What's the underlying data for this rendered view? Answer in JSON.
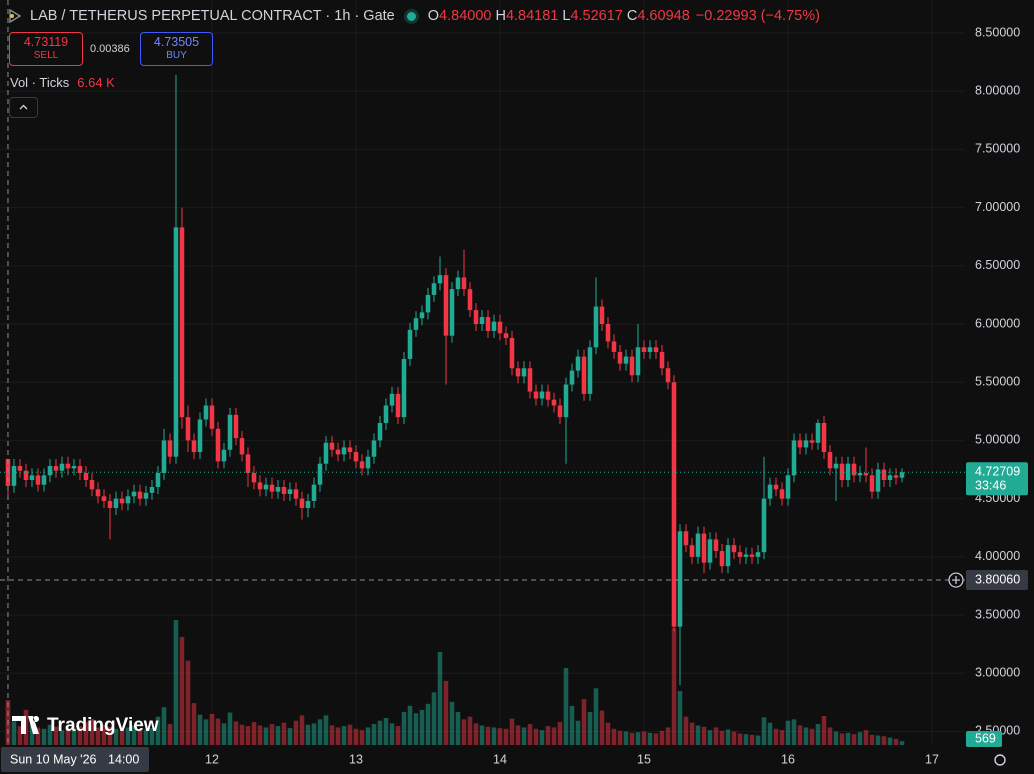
{
  "header": {
    "title": "LAB / TETHERUS PERPETUAL CONTRACT · 1h · Gate",
    "ohlc": [
      {
        "key": "O",
        "value": "4.84000"
      },
      {
        "key": "H",
        "value": "4.84181"
      },
      {
        "key": "L",
        "value": "4.52617"
      },
      {
        "key": "C",
        "value": "4.60948"
      }
    ],
    "change": "−0.22993 (−4.75%)"
  },
  "trade": {
    "sell_price": "4.73119",
    "sell": "SELL",
    "spread": "0.00386",
    "buy_price": "4.73505",
    "buy": "BUY"
  },
  "volume_legend": {
    "label": "Vol · Ticks",
    "value": "6.64 K"
  },
  "watermark": "TradingView",
  "chart_data": {
    "type": "candlestick",
    "up_color": "#22ab94",
    "down_color": "#f23645",
    "grid": true,
    "open": [
      4.84,
      4.61,
      4.78,
      4.74,
      4.66,
      4.7,
      4.62,
      4.7,
      4.78,
      4.74,
      4.8,
      4.76,
      4.78,
      4.72,
      4.66,
      4.58,
      4.52,
      4.48,
      4.42,
      4.5,
      4.46,
      4.52,
      4.56,
      4.5,
      4.55,
      4.6,
      4.72,
      5.0,
      4.86,
      6.83,
      5.2,
      5.0,
      4.9,
      5.18,
      5.3,
      5.1,
      4.82,
      4.92,
      5.22,
      5.02,
      4.88,
      4.72,
      4.64,
      4.58,
      4.62,
      4.56,
      4.6,
      4.54,
      4.58,
      4.5,
      4.42,
      4.48,
      4.62,
      4.8,
      4.98,
      4.92,
      4.88,
      4.94,
      4.9,
      4.82,
      4.76,
      4.86,
      5.0,
      5.15,
      5.3,
      5.4,
      5.2,
      5.7,
      5.95,
      6.05,
      6.1,
      6.25,
      6.35,
      6.42,
      5.9,
      6.3,
      6.4,
      6.3,
      6.12,
      6.0,
      6.06,
      5.94,
      6.02,
      5.92,
      5.88,
      5.62,
      5.55,
      5.62,
      5.42,
      5.36,
      5.42,
      5.35,
      5.3,
      5.2,
      5.48,
      5.6,
      5.72,
      5.4,
      5.8,
      6.15,
      6.0,
      5.85,
      5.76,
      5.66,
      5.72,
      5.56,
      5.8,
      5.76,
      5.8,
      5.76,
      5.62,
      5.5,
      3.4,
      4.22,
      4.1,
      4.0,
      4.2,
      3.95,
      4.15,
      4.05,
      3.92,
      4.1,
      4.04,
      4.0,
      4.02,
      4.0,
      4.04,
      4.5,
      4.62,
      4.58,
      4.5,
      4.7,
      5.0,
      4.94,
      5.0,
      4.98,
      5.15,
      4.9,
      4.76,
      4.8,
      4.66,
      4.8,
      4.7,
      4.72,
      4.7,
      4.56,
      4.75,
      4.66,
      4.7,
      4.68
    ],
    "high": [
      4.84181,
      4.84,
      4.84,
      4.8,
      4.76,
      4.76,
      4.76,
      4.84,
      4.84,
      4.86,
      4.86,
      4.84,
      4.84,
      4.78,
      4.72,
      4.64,
      4.58,
      4.54,
      4.56,
      4.56,
      4.58,
      4.62,
      4.62,
      4.61,
      4.66,
      4.78,
      5.1,
      5.06,
      8.14,
      7.0,
      5.3,
      5.06,
      5.24,
      5.36,
      5.36,
      5.16,
      4.98,
      5.28,
      5.28,
      5.08,
      4.94,
      4.78,
      4.7,
      4.68,
      4.68,
      4.66,
      4.66,
      4.64,
      4.64,
      4.56,
      4.54,
      4.68,
      4.86,
      5.04,
      5.04,
      4.98,
      5.0,
      5.0,
      4.96,
      4.88,
      4.92,
      5.06,
      5.21,
      5.36,
      5.46,
      5.46,
      5.76,
      6.01,
      6.11,
      6.16,
      6.31,
      6.41,
      6.58,
      6.48,
      6.36,
      6.46,
      6.64,
      6.36,
      6.18,
      6.12,
      6.12,
      6.08,
      6.08,
      5.98,
      5.94,
      5.68,
      5.68,
      5.68,
      5.48,
      5.48,
      5.48,
      5.41,
      5.36,
      5.54,
      5.66,
      5.78,
      5.78,
      5.86,
      6.4,
      6.21,
      6.06,
      5.91,
      5.82,
      5.78,
      5.78,
      6.0,
      5.86,
      5.86,
      5.86,
      5.82,
      5.68,
      5.56,
      4.28,
      4.28,
      4.16,
      4.26,
      4.26,
      4.21,
      4.21,
      4.11,
      4.16,
      4.16,
      4.1,
      4.08,
      4.08,
      4.1,
      4.86,
      4.68,
      4.68,
      4.64,
      4.76,
      5.06,
      5.06,
      5.06,
      5.06,
      5.18,
      5.21,
      4.96,
      4.86,
      4.86,
      4.86,
      4.86,
      4.78,
      4.94,
      4.76,
      4.81,
      4.81,
      4.76,
      4.76,
      4.76
    ],
    "low": [
      4.52617,
      4.55,
      4.68,
      4.6,
      4.6,
      4.56,
      4.56,
      4.64,
      4.68,
      4.68,
      4.7,
      4.7,
      4.66,
      4.6,
      4.52,
      4.46,
      4.42,
      4.15,
      4.36,
      4.4,
      4.4,
      4.46,
      4.44,
      4.44,
      4.49,
      4.54,
      4.66,
      4.8,
      4.8,
      5.1,
      4.9,
      4.84,
      4.84,
      5.12,
      5.04,
      4.76,
      4.76,
      4.86,
      4.96,
      4.82,
      4.6,
      4.58,
      4.52,
      4.52,
      4.5,
      4.5,
      4.48,
      4.48,
      4.44,
      4.32,
      4.34,
      4.42,
      4.56,
      4.74,
      4.86,
      4.82,
      4.82,
      4.84,
      4.76,
      4.7,
      4.7,
      4.8,
      4.94,
      5.09,
      5.24,
      5.14,
      5.14,
      5.64,
      5.89,
      5.99,
      6.04,
      6.19,
      6.29,
      5.48,
      5.84,
      6.24,
      6.24,
      6.06,
      5.94,
      5.94,
      5.88,
      5.88,
      5.86,
      5.82,
      5.56,
      5.49,
      5.49,
      5.36,
      5.3,
      5.3,
      5.29,
      5.24,
      5.14,
      4.8,
      5.42,
      5.54,
      5.34,
      5.34,
      5.74,
      5.94,
      5.79,
      5.7,
      5.6,
      5.6,
      5.5,
      5.5,
      5.7,
      5.7,
      5.7,
      5.56,
      5.44,
      3.36,
      2.9,
      4.04,
      3.94,
      3.94,
      3.86,
      3.89,
      3.99,
      3.86,
      3.86,
      3.98,
      3.94,
      3.94,
      3.94,
      3.94,
      3.98,
      4.44,
      4.52,
      4.44,
      4.44,
      4.64,
      4.88,
      4.88,
      4.92,
      4.92,
      4.84,
      4.7,
      4.48,
      4.6,
      4.6,
      4.64,
      4.64,
      4.64,
      4.5,
      4.5,
      4.6,
      4.6,
      4.62,
      4.64
    ],
    "close": [
      4.60948,
      4.78,
      4.74,
      4.66,
      4.7,
      4.62,
      4.7,
      4.78,
      4.74,
      4.8,
      4.76,
      4.78,
      4.72,
      4.66,
      4.58,
      4.52,
      4.48,
      4.42,
      4.5,
      4.46,
      4.52,
      4.56,
      4.5,
      4.55,
      4.6,
      4.72,
      5.0,
      4.86,
      6.83,
      5.2,
      5.0,
      4.9,
      5.18,
      5.3,
      5.1,
      4.82,
      4.92,
      5.22,
      5.02,
      4.88,
      4.72,
      4.64,
      4.58,
      4.62,
      4.56,
      4.6,
      4.54,
      4.58,
      4.5,
      4.42,
      4.48,
      4.62,
      4.8,
      4.98,
      4.92,
      4.88,
      4.94,
      4.9,
      4.82,
      4.76,
      4.86,
      5.0,
      5.15,
      5.3,
      5.4,
      5.2,
      5.7,
      5.95,
      6.05,
      6.1,
      6.25,
      6.35,
      6.42,
      5.9,
      6.3,
      6.4,
      6.3,
      6.12,
      6.0,
      6.06,
      5.94,
      6.02,
      5.92,
      5.88,
      5.62,
      5.55,
      5.62,
      5.42,
      5.36,
      5.42,
      5.35,
      5.3,
      5.2,
      5.48,
      5.6,
      5.72,
      5.4,
      5.8,
      6.15,
      6.0,
      5.85,
      5.76,
      5.66,
      5.72,
      5.56,
      5.8,
      5.76,
      5.8,
      5.76,
      5.62,
      5.5,
      3.4,
      4.22,
      4.1,
      4.0,
      4.2,
      3.95,
      4.15,
      4.05,
      3.92,
      4.1,
      4.04,
      4.0,
      4.02,
      4.0,
      4.04,
      4.5,
      4.62,
      4.58,
      4.5,
      4.7,
      5.0,
      4.94,
      5.0,
      4.98,
      5.15,
      4.9,
      4.76,
      4.8,
      4.66,
      4.8,
      4.7,
      4.72,
      4.7,
      4.56,
      4.75,
      4.66,
      4.7,
      4.68,
      4.72709
    ],
    "volume": [
      6640,
      3500,
      2800,
      5200,
      3100,
      2600,
      2400,
      3000,
      2700,
      2200,
      2500,
      2300,
      2800,
      3400,
      3900,
      2600,
      3000,
      2700,
      2400,
      2200,
      2600,
      2900,
      2100,
      2300,
      2500,
      4200,
      5600,
      3100,
      18500,
      16000,
      12500,
      6200,
      4500,
      3800,
      4600,
      3900,
      3200,
      4800,
      3500,
      3000,
      2800,
      3400,
      2900,
      2600,
      3100,
      2800,
      3300,
      2500,
      3600,
      4400,
      3000,
      3200,
      3800,
      4400,
      2900,
      2600,
      2800,
      3000,
      2400,
      2200,
      2600,
      3100,
      3600,
      4000,
      3200,
      2800,
      4900,
      5800,
      4700,
      5200,
      6100,
      7800,
      13800,
      9500,
      6400,
      4900,
      3800,
      4200,
      3200,
      2900,
      2700,
      2600,
      2500,
      2400,
      3900,
      2900,
      2600,
      3100,
      2400,
      2200,
      2800,
      2600,
      3400,
      11400,
      5800,
      3600,
      6800,
      4900,
      8400,
      5100,
      3300,
      2400,
      2100,
      2000,
      1800,
      1900,
      2000,
      1800,
      1700,
      2100,
      2600,
      17300,
      8000,
      4200,
      3300,
      2900,
      2700,
      2200,
      2600,
      2100,
      2300,
      2000,
      1700,
      1600,
      1500,
      1400,
      4100,
      3300,
      2400,
      2200,
      3600,
      3800,
      2900,
      2600,
      2400,
      3100,
      4300,
      2600,
      2000,
      1700,
      1800,
      1600,
      1900,
      2200,
      1500,
      1400,
      1300,
      1100,
      900,
      569
    ],
    "xlim": [
      -1.33,
      159.5
    ],
    "xticks": [
      {
        "value": 34,
        "label": "12"
      },
      {
        "value": 58,
        "label": "13"
      },
      {
        "value": 82,
        "label": "14"
      },
      {
        "value": 106,
        "label": "15"
      },
      {
        "value": 130,
        "label": "16"
      },
      {
        "value": 154,
        "label": "17"
      }
    ],
    "ylim": [
      2.3836,
      8.7835
    ],
    "yticks": [
      {
        "value": 2.5,
        "label": "2.50000"
      },
      {
        "value": 3,
        "label": "3.00000"
      },
      {
        "value": 3.5,
        "label": "3.50000"
      },
      {
        "value": 4,
        "label": "4.00000"
      },
      {
        "value": 4.5,
        "label": "4.50000"
      },
      {
        "value": 5,
        "label": "5.00000"
      },
      {
        "value": 5.5,
        "label": "5.50000"
      },
      {
        "value": 6,
        "label": "6.00000"
      },
      {
        "value": 6.5,
        "label": "6.50000"
      },
      {
        "value": 7,
        "label": "7.00000"
      },
      {
        "value": 7.5,
        "label": "7.50000"
      },
      {
        "value": 8,
        "label": "8.00000"
      },
      {
        "value": 8.5,
        "label": "8.50000"
      }
    ],
    "volume_ylim": [
      0,
      20000
    ],
    "last_price": 4.72709,
    "countdown": "33:46",
    "crosshair": {
      "price": {
        "value": 3.8006,
        "label": "3.80060"
      },
      "date": "Sun 10 May '26",
      "time": "14:00"
    }
  }
}
